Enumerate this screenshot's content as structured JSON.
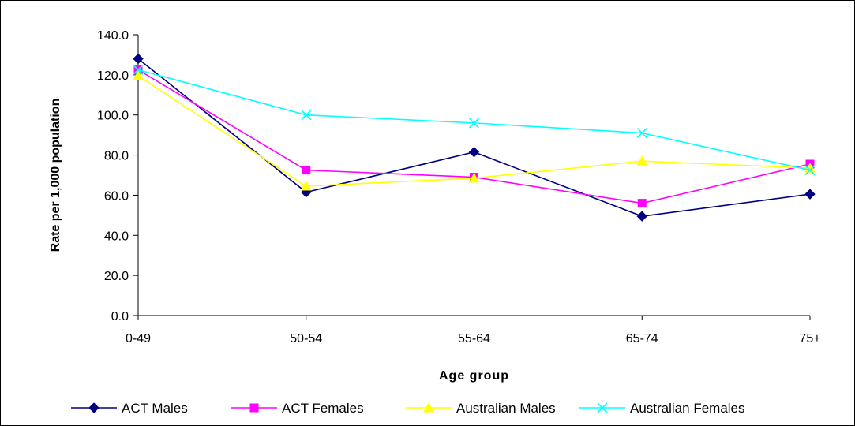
{
  "chart_data": {
    "type": "line",
    "title": "",
    "xlabel": "Age group",
    "ylabel": "Rate per 1,000 population",
    "categories": [
      "0-49",
      "50-54",
      "55-64",
      "65-74",
      "75+"
    ],
    "ylim": [
      0,
      140
    ],
    "yticks": [
      "0.0",
      "20.0",
      "40.0",
      "60.0",
      "80.0",
      "100.0",
      "120.0",
      "140.0"
    ],
    "grid": false,
    "legend_position": "bottom",
    "series": [
      {
        "name": "ACT Males",
        "values": [
          128.0,
          61.5,
          81.5,
          49.5,
          60.5
        ],
        "color": "#000080",
        "marker": "diamond"
      },
      {
        "name": "ACT Females",
        "values": [
          122.5,
          72.5,
          69.0,
          56.0,
          75.5
        ],
        "color": "#ff00ff",
        "marker": "square"
      },
      {
        "name": "Australian Males",
        "values": [
          119.5,
          64.5,
          68.5,
          77.0,
          73.5
        ],
        "color": "#ffff00",
        "marker": "triangle"
      },
      {
        "name": "Australian Females",
        "values": [
          122.5,
          100.0,
          96.0,
          91.0,
          72.5
        ],
        "color": "#00ffff",
        "marker": "x"
      }
    ]
  }
}
